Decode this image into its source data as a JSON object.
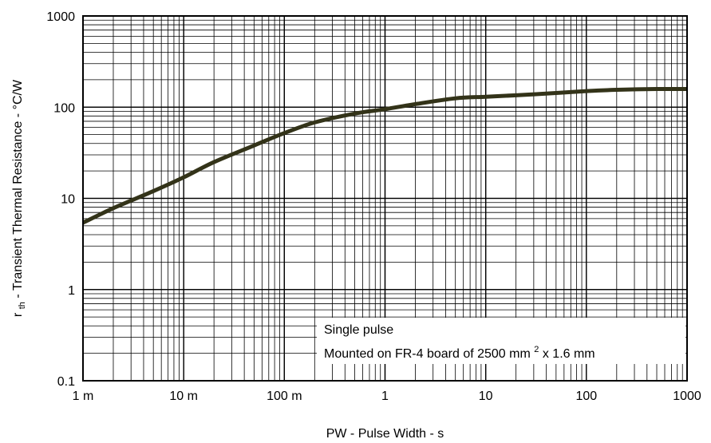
{
  "chart_data": {
    "type": "line",
    "xscale": "log",
    "yscale": "log",
    "xlim": [
      0.001,
      1000
    ],
    "ylim": [
      0.1,
      1000
    ],
    "grid": true,
    "x_tick_values": [
      0.001,
      0.01,
      0.1,
      1,
      10,
      100,
      1000
    ],
    "x_tick_labels": [
      "1 m",
      "10 m",
      "100 m",
      "1",
      "10",
      "100",
      "1000"
    ],
    "y_tick_values": [
      0.1,
      1,
      10,
      100,
      1000
    ],
    "y_tick_labels": [
      "0.1",
      "1",
      "10",
      "100",
      "1000"
    ],
    "xlabel": "PW - Pulse Width - s",
    "ylabel_sub": "th",
    "ylabel_main": "- Transient Thermal Resistance - °C/W",
    "ylabel_prefix": "r",
    "legend": {
      "placement": "bottom-right",
      "line1": "Single pulse",
      "line2_main": "Mounted on FR-4 board of 2500 mm",
      "line2_sup": "2",
      "line2_tail": " x 1.6 mm"
    },
    "line_color": "#333319",
    "series": [
      {
        "x": [
          0.001,
          0.002,
          0.005,
          0.01,
          0.02,
          0.05,
          0.1,
          0.2,
          0.5,
          1,
          2,
          5,
          10,
          20,
          50,
          100,
          200,
          500,
          1000
        ],
        "y": [
          5.4,
          7.8,
          12,
          17,
          25,
          38,
          52,
          68,
          85,
          95,
          108,
          125,
          130,
          135,
          143,
          150,
          155,
          158,
          158
        ]
      }
    ]
  }
}
